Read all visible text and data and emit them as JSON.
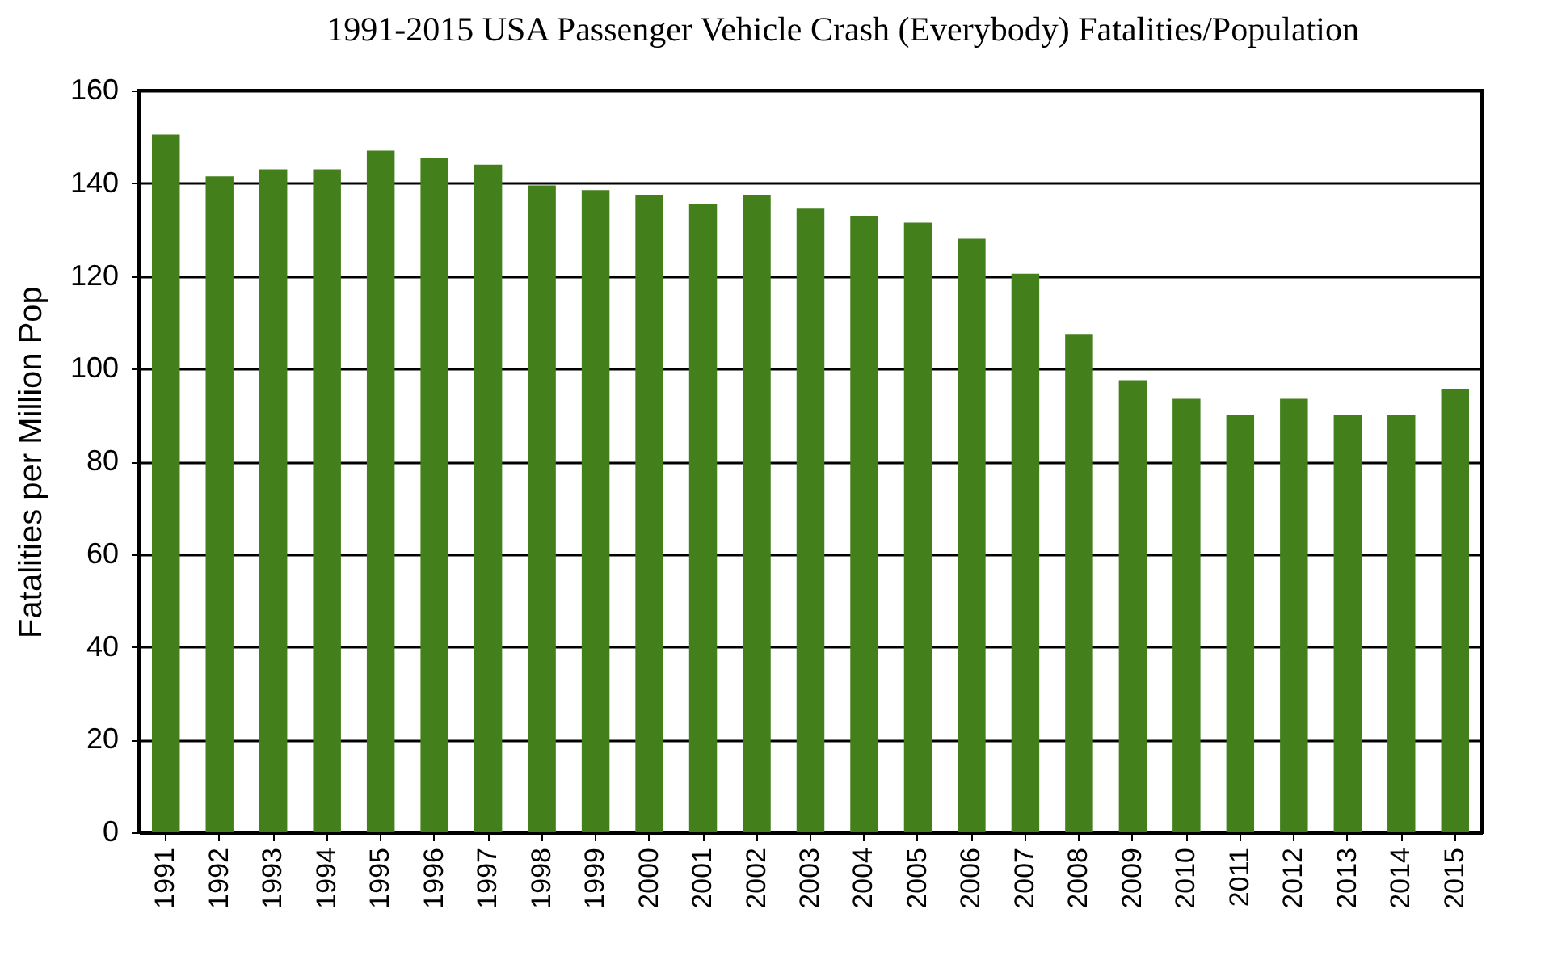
{
  "chart_data": {
    "type": "bar",
    "title": "1991-2015 USA Passenger Vehicle Crash (Everybody) Fatalities/Population",
    "ylabel": "Fatalities per Million Pop",
    "categories": [
      "1991",
      "1992",
      "1993",
      "1994",
      "1995",
      "1996",
      "1997",
      "1998",
      "1999",
      "2000",
      "2001",
      "2002",
      "2003",
      "2004",
      "2005",
      "2006",
      "2007",
      "2008",
      "2009",
      "2010",
      "2011",
      "2012",
      "2013",
      "2014",
      "2015"
    ],
    "values": [
      150.5,
      141.5,
      143,
      143,
      147,
      145.5,
      144,
      139.5,
      138.5,
      137.5,
      135.5,
      137.5,
      134.5,
      133,
      131.5,
      128,
      120.5,
      107.5,
      97.5,
      93.5,
      90,
      93.5,
      90,
      90,
      95.5
    ],
    "color": "#43801c",
    "ylim": [
      0,
      160
    ],
    "yticks": [
      0,
      20,
      40,
      60,
      80,
      100,
      120,
      140,
      160
    ],
    "grid": "y"
  }
}
